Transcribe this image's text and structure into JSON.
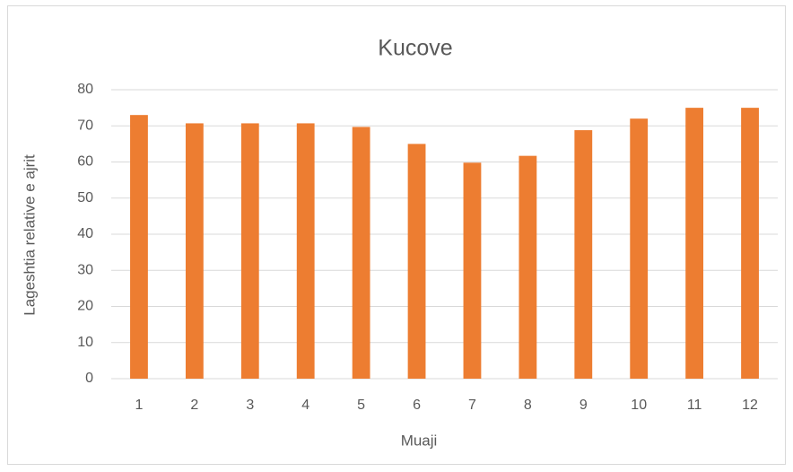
{
  "chart_data": {
    "type": "bar",
    "title": "Kucove",
    "x_label": "Muaji",
    "y_label": "Lageshtia relative e ajrit",
    "categories": [
      "1",
      "2",
      "3",
      "4",
      "5",
      "6",
      "7",
      "8",
      "9",
      "10",
      "11",
      "12"
    ],
    "values": [
      73,
      70.7,
      70.7,
      70.7,
      69.7,
      65,
      59.8,
      61.7,
      68.8,
      72,
      75,
      75
    ],
    "color": "#ed7d31",
    "ylim": [
      0,
      80
    ],
    "yticks": [
      0,
      10,
      20,
      30,
      40,
      50,
      60,
      70,
      80
    ],
    "grid": true
  }
}
